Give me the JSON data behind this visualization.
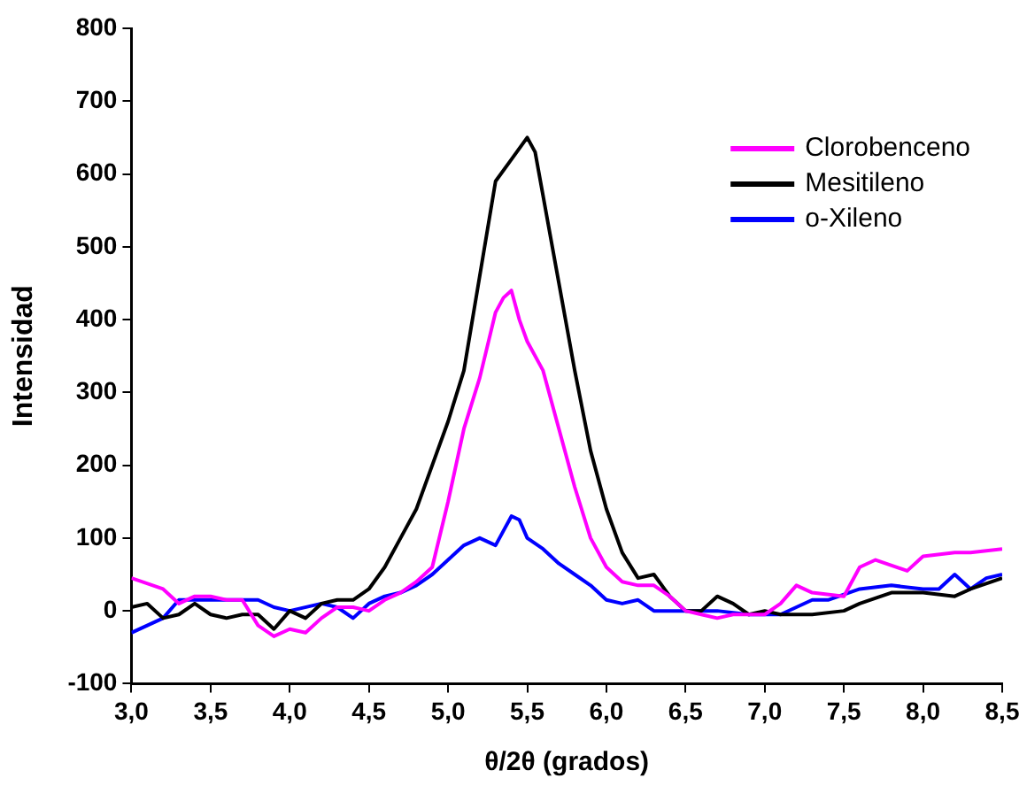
{
  "chart_data": {
    "type": "line",
    "xlabel": "θ/2θ (grados)",
    "ylabel": "Intensidad",
    "xlim": [
      3.0,
      8.5
    ],
    "ylim": [
      -100,
      800
    ],
    "xticks": [
      {
        "value": 3.0,
        "label": "3,0"
      },
      {
        "value": 3.5,
        "label": "3,5"
      },
      {
        "value": 4.0,
        "label": "4,0"
      },
      {
        "value": 4.5,
        "label": "4,5"
      },
      {
        "value": 5.0,
        "label": "5,0"
      },
      {
        "value": 5.5,
        "label": "5,5"
      },
      {
        "value": 6.0,
        "label": "6,0"
      },
      {
        "value": 6.5,
        "label": "6,5"
      },
      {
        "value": 7.0,
        "label": "7,0"
      },
      {
        "value": 7.5,
        "label": "7,5"
      },
      {
        "value": 8.0,
        "label": "8,0"
      },
      {
        "value": 8.5,
        "label": "8,5"
      }
    ],
    "yticks": [
      -100,
      0,
      100,
      200,
      300,
      400,
      500,
      600,
      700,
      800
    ],
    "grid": false,
    "legend": "top right",
    "marker": "none",
    "line_style": "solid",
    "series": [
      {
        "name": "Clorobenceno",
        "color": "#ff00ff",
        "x": [
          3.0,
          3.2,
          3.3,
          3.4,
          3.5,
          3.6,
          3.7,
          3.8,
          3.9,
          4.0,
          4.1,
          4.2,
          4.3,
          4.4,
          4.5,
          4.6,
          4.7,
          4.8,
          4.9,
          5.0,
          5.1,
          5.2,
          5.3,
          5.35,
          5.4,
          5.45,
          5.5,
          5.6,
          5.7,
          5.8,
          5.9,
          6.0,
          6.1,
          6.2,
          6.3,
          6.4,
          6.5,
          6.6,
          6.7,
          6.8,
          7.0,
          7.1,
          7.2,
          7.3,
          7.5,
          7.6,
          7.7,
          7.9,
          8.0,
          8.2,
          8.3,
          8.5
        ],
        "values": [
          45,
          30,
          10,
          20,
          20,
          15,
          15,
          -20,
          -35,
          -25,
          -30,
          -10,
          5,
          5,
          0,
          15,
          25,
          40,
          60,
          150,
          250,
          320,
          410,
          430,
          440,
          400,
          370,
          330,
          250,
          170,
          100,
          60,
          40,
          35,
          35,
          20,
          0,
          -5,
          -10,
          -5,
          -5,
          10,
          35,
          25,
          20,
          60,
          70,
          55,
          75,
          80,
          80,
          85
        ]
      },
      {
        "name": "Mesitileno",
        "color": "#000000",
        "x": [
          3.0,
          3.1,
          3.2,
          3.3,
          3.4,
          3.5,
          3.6,
          3.7,
          3.8,
          3.9,
          4.0,
          4.1,
          4.2,
          4.3,
          4.4,
          4.5,
          4.6,
          4.7,
          4.8,
          4.9,
          5.0,
          5.1,
          5.2,
          5.3,
          5.4,
          5.5,
          5.55,
          5.6,
          5.7,
          5.8,
          5.9,
          6.0,
          6.1,
          6.2,
          6.3,
          6.4,
          6.5,
          6.6,
          6.7,
          6.8,
          6.9,
          7.0,
          7.1,
          7.3,
          7.5,
          7.6,
          7.8,
          8.0,
          8.2,
          8.3,
          8.5
        ],
        "values": [
          5,
          10,
          -10,
          -5,
          10,
          -5,
          -10,
          -5,
          -5,
          -25,
          0,
          -10,
          10,
          15,
          15,
          30,
          60,
          100,
          140,
          200,
          260,
          330,
          460,
          590,
          620,
          650,
          630,
          570,
          450,
          330,
          220,
          140,
          80,
          45,
          50,
          20,
          0,
          0,
          20,
          10,
          -5,
          0,
          -5,
          -5,
          0,
          10,
          25,
          25,
          20,
          30,
          45
        ]
      },
      {
        "name": "o-Xileno",
        "color": "#0000ff",
        "x": [
          3.0,
          3.1,
          3.2,
          3.3,
          3.4,
          3.6,
          3.8,
          3.9,
          4.0,
          4.2,
          4.3,
          4.4,
          4.5,
          4.6,
          4.7,
          4.8,
          4.9,
          5.0,
          5.1,
          5.2,
          5.3,
          5.35,
          5.4,
          5.45,
          5.5,
          5.6,
          5.7,
          5.8,
          5.9,
          6.0,
          6.1,
          6.2,
          6.3,
          6.5,
          6.7,
          6.9,
          7.1,
          7.3,
          7.4,
          7.6,
          7.8,
          8.0,
          8.1,
          8.2,
          8.3,
          8.4,
          8.5
        ],
        "values": [
          -30,
          -20,
          -10,
          15,
          15,
          15,
          15,
          5,
          0,
          10,
          5,
          -10,
          10,
          20,
          25,
          35,
          50,
          70,
          90,
          100,
          90,
          110,
          130,
          125,
          100,
          85,
          65,
          50,
          35,
          15,
          10,
          15,
          0,
          0,
          0,
          -5,
          -5,
          15,
          15,
          30,
          35,
          30,
          30,
          50,
          30,
          45,
          50
        ]
      }
    ]
  }
}
